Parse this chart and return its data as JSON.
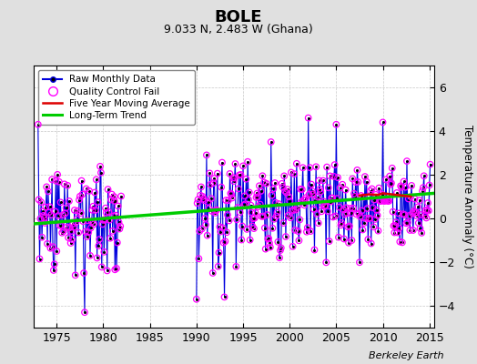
{
  "title": "BOLE",
  "subtitle": "9.033 N, 2.483 W (Ghana)",
  "ylabel": "Temperature Anomaly (°C)",
  "credit": "Berkeley Earth",
  "xlim": [
    1972.5,
    2015.5
  ],
  "ylim": [
    -5,
    7
  ],
  "yticks": [
    -4,
    -2,
    0,
    2,
    4,
    6
  ],
  "xticks": [
    1975,
    1980,
    1985,
    1990,
    1995,
    2000,
    2005,
    2010,
    2015
  ],
  "bg_color": "#e0e0e0",
  "plot_bg_color": "#ffffff",
  "grid_color": "#c8c8c8",
  "raw_color": "#0000dd",
  "qc_color": "#ff00ff",
  "moving_avg_color": "#dd0000",
  "trend_color": "#00cc00",
  "trend_x": [
    1972.5,
    2015.5
  ],
  "trend_y": [
    -0.25,
    1.15
  ]
}
